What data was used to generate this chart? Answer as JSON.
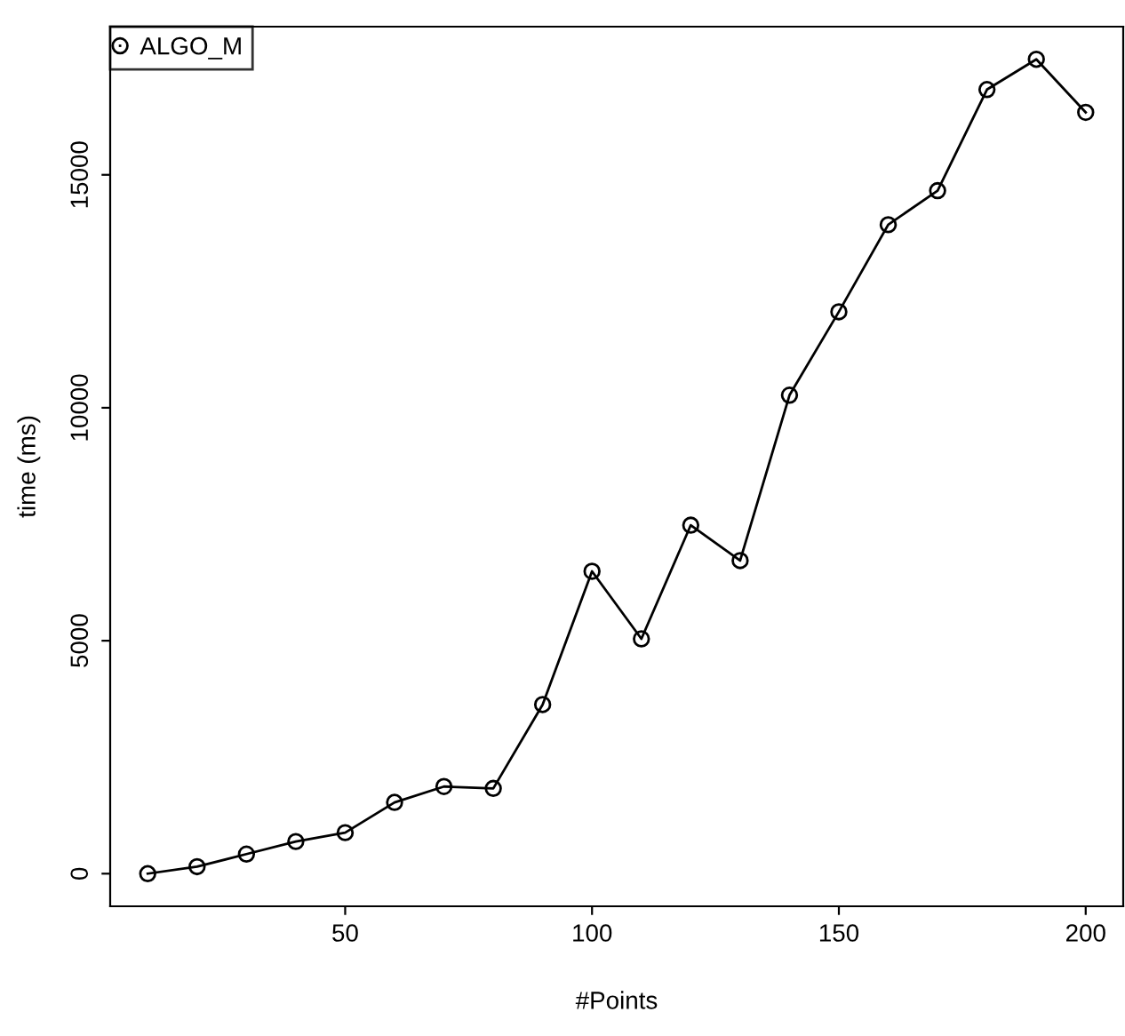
{
  "chart_data": {
    "type": "line",
    "xlabel": "#Points",
    "ylabel": "time (ms)",
    "x": [
      10,
      20,
      30,
      40,
      50,
      60,
      70,
      80,
      90,
      100,
      110,
      120,
      130,
      140,
      150,
      160,
      170,
      180,
      190,
      200
    ],
    "series": [
      {
        "name": "ALGO_M",
        "color": "#000000",
        "values": [
          0,
          150,
          420,
          690,
          880,
          1530,
          1870,
          1830,
          3630,
          6490,
          5040,
          7480,
          6720,
          10270,
          12060,
          13930,
          14660,
          16830,
          17480,
          16340
        ]
      }
    ],
    "xlim": [
      2.4,
      207.6
    ],
    "ylim": [
      -700,
      18180
    ],
    "xticks": [
      50,
      100,
      150,
      200
    ],
    "yticks": [
      0,
      5000,
      10000,
      15000
    ],
    "marker": "circle",
    "line_style": "solid",
    "legend": "top left",
    "grid": false
  }
}
